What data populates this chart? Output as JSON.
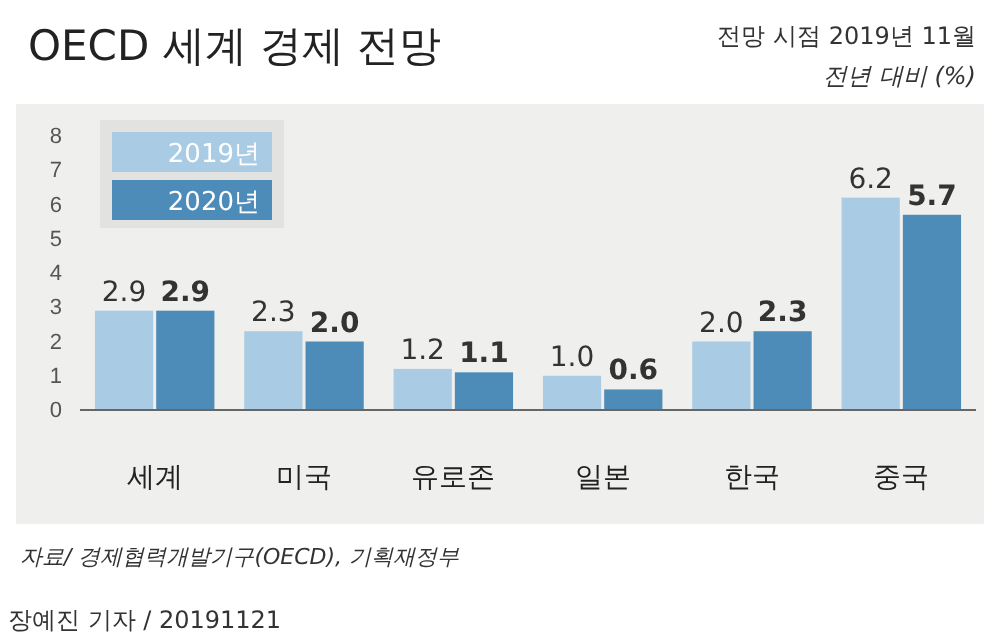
{
  "chart_data": {
    "type": "bar",
    "title": "OECD 세계 경제 전망",
    "subtitle": "전망 시점 2019년 11월",
    "ylabel": "전년 대비 (%)",
    "categories": [
      "세계",
      "미국",
      "유로존",
      "일본",
      "한국",
      "중국"
    ],
    "series": [
      {
        "name": "2019년",
        "color": "#a9cbe3",
        "values": [
          2.9,
          2.3,
          1.2,
          1.0,
          2.0,
          6.2
        ],
        "value_labels": [
          "2.9",
          "2.3",
          "1.2",
          "1.0",
          "2.0",
          "6.2"
        ]
      },
      {
        "name": "2020년",
        "color": "#4d8cb8",
        "values": [
          2.9,
          2.0,
          1.1,
          0.6,
          2.3,
          5.7
        ],
        "value_labels": [
          "2.9",
          "2.0",
          "1.1",
          "0.6",
          "2.3",
          "5.7"
        ]
      }
    ],
    "ylim": [
      0,
      8
    ],
    "yticks": [
      0,
      1,
      2,
      3,
      4,
      5,
      6,
      7,
      8
    ],
    "grid": false,
    "legend": "top left",
    "annotations": [
      "자료/ 경제협력개발기구(OECD), 기획재정부",
      "장예진 기자 / 20191121"
    ]
  }
}
